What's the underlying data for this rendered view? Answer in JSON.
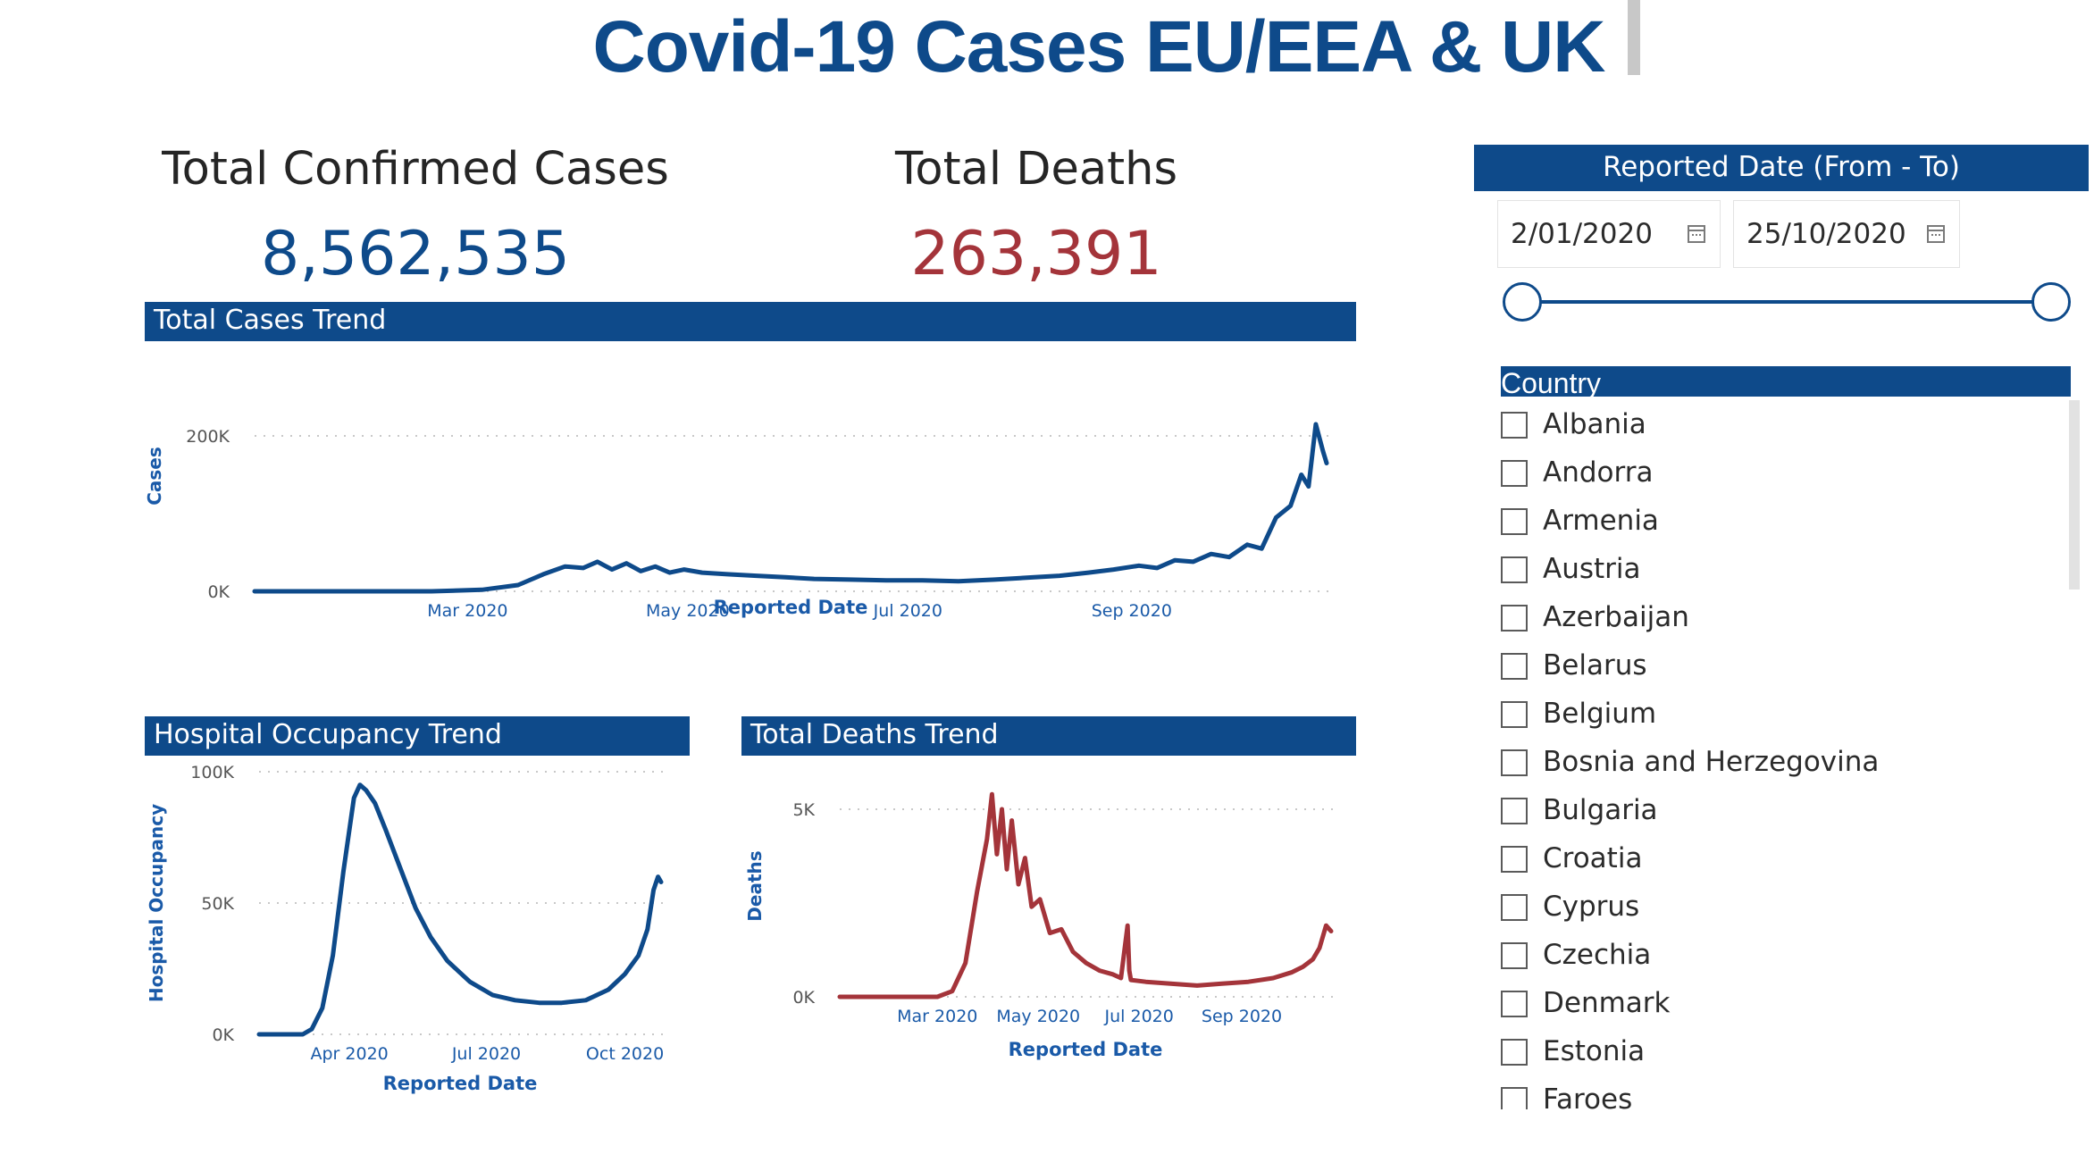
{
  "title": "Covid-19 Cases EU/EEA & UK",
  "kpis": {
    "cases_label": "Total Confirmed Cases",
    "cases_value": "8,562,535",
    "deaths_label": "Total Deaths",
    "deaths_value": "263,391"
  },
  "colors": {
    "primary": "#0e4a8a",
    "deaths": "#a4343a",
    "grid": "#c8c8c8"
  },
  "panels": {
    "cases_trend": "Total Cases Trend",
    "hospital_trend": "Hospital Occupancy Trend",
    "deaths_trend": "Total Deaths Trend"
  },
  "slicer": {
    "header": "Reported Date (From - To)",
    "from": "2/01/2020",
    "to": "25/10/2020",
    "from_icon": "calendar-icon",
    "to_icon": "calendar-icon"
  },
  "country": {
    "header": "Country",
    "items": [
      "Albania",
      "Andorra",
      "Armenia",
      "Austria",
      "Azerbaijan",
      "Belarus",
      "Belgium",
      "Bosnia and Herzegovina",
      "Bulgaria",
      "Croatia",
      "Cyprus",
      "Czechia",
      "Denmark",
      "Estonia",
      "Faroes"
    ]
  },
  "chart_data": [
    {
      "type": "line",
      "xlabel": "Reported Date",
      "ylabel": "Cases",
      "xticks": [
        "Mar 2020",
        "May 2020",
        "Jul 2020",
        "Sep 2020"
      ],
      "yticks": [
        "0K",
        "200K"
      ],
      "ylim": [
        0,
        200000
      ],
      "xlim": [
        "2020-01-02",
        "2020-10-25"
      ],
      "grid": true,
      "series": [
        {
          "x": [
            "2020-01-02",
            "2020-02-20",
            "2020-03-05",
            "2020-03-15",
            "2020-03-22",
            "2020-03-28",
            "2020-04-02",
            "2020-04-06",
            "2020-04-10",
            "2020-04-14",
            "2020-04-18",
            "2020-04-22",
            "2020-04-26",
            "2020-04-30",
            "2020-05-05",
            "2020-05-12",
            "2020-05-20",
            "2020-05-28",
            "2020-06-05",
            "2020-06-15",
            "2020-06-25",
            "2020-07-05",
            "2020-07-15",
            "2020-07-25",
            "2020-08-05",
            "2020-08-12",
            "2020-08-20",
            "2020-08-27",
            "2020-09-03",
            "2020-09-08",
            "2020-09-13",
            "2020-09-18",
            "2020-09-23",
            "2020-09-28",
            "2020-10-03",
            "2020-10-07",
            "2020-10-11",
            "2020-10-15",
            "2020-10-18",
            "2020-10-20",
            "2020-10-22",
            "2020-10-24",
            "2020-10-25"
          ],
          "values": [
            0,
            0,
            2000,
            8000,
            22000,
            32000,
            30000,
            38000,
            28000,
            36000,
            26000,
            32000,
            24000,
            28000,
            24000,
            22000,
            20000,
            18000,
            16000,
            15000,
            14000,
            14000,
            13000,
            15000,
            18000,
            20000,
            24000,
            28000,
            33000,
            30000,
            40000,
            38000,
            48000,
            44000,
            60000,
            55000,
            95000,
            110000,
            150000,
            135000,
            215000,
            180000,
            165000
          ]
        }
      ]
    },
    {
      "type": "line",
      "xlabel": "Reported Date",
      "ylabel": "Hospital Occupancy",
      "xticks": [
        "Apr 2020",
        "Jul 2020",
        "Oct 2020"
      ],
      "yticks": [
        "0K",
        "50K",
        "100K"
      ],
      "ylim": [
        0,
        100000
      ],
      "xlim": [
        "2020-02-01",
        "2020-10-25"
      ],
      "grid": true,
      "series": [
        {
          "x": [
            "2020-02-01",
            "2020-03-01",
            "2020-03-07",
            "2020-03-14",
            "2020-03-21",
            "2020-03-28",
            "2020-04-04",
            "2020-04-08",
            "2020-04-12",
            "2020-04-18",
            "2020-04-25",
            "2020-05-05",
            "2020-05-15",
            "2020-05-25",
            "2020-06-05",
            "2020-06-20",
            "2020-07-05",
            "2020-07-20",
            "2020-08-05",
            "2020-08-20",
            "2020-09-05",
            "2020-09-20",
            "2020-10-01",
            "2020-10-10",
            "2020-10-16",
            "2020-10-20",
            "2020-10-23",
            "2020-10-25"
          ],
          "values": [
            0,
            0,
            2000,
            10000,
            30000,
            62000,
            90000,
            95000,
            93000,
            88000,
            78000,
            63000,
            48000,
            37000,
            28000,
            20000,
            15000,
            13000,
            12000,
            12000,
            13000,
            17000,
            23000,
            30000,
            40000,
            55000,
            60000,
            58000
          ]
        }
      ]
    },
    {
      "type": "line",
      "xlabel": "Reported Date",
      "ylabel": "Deaths",
      "xticks": [
        "Mar 2020",
        "May 2020",
        "Jul 2020",
        "Sep 2020"
      ],
      "yticks": [
        "0K",
        "5K"
      ],
      "ylim": [
        0,
        5000
      ],
      "xlim": [
        "2020-01-02",
        "2020-10-25"
      ],
      "grid": true,
      "series": [
        {
          "x": [
            "2020-01-02",
            "2020-03-01",
            "2020-03-10",
            "2020-03-18",
            "2020-03-25",
            "2020-03-31",
            "2020-04-03",
            "2020-04-06",
            "2020-04-09",
            "2020-04-12",
            "2020-04-15",
            "2020-04-19",
            "2020-04-23",
            "2020-04-27",
            "2020-05-02",
            "2020-05-08",
            "2020-05-15",
            "2020-05-22",
            "2020-05-30",
            "2020-06-07",
            "2020-06-15",
            "2020-06-20",
            "2020-06-24",
            "2020-06-25",
            "2020-06-26",
            "2020-07-05",
            "2020-07-20",
            "2020-08-05",
            "2020-08-20",
            "2020-09-05",
            "2020-09-20",
            "2020-10-01",
            "2020-10-08",
            "2020-10-14",
            "2020-10-18",
            "2020-10-22",
            "2020-10-25"
          ],
          "values": [
            0,
            0,
            150,
            900,
            2800,
            4200,
            5400,
            3800,
            5000,
            3400,
            4700,
            3000,
            3700,
            2400,
            2600,
            1700,
            1800,
            1200,
            900,
            700,
            600,
            500,
            1900,
            700,
            450,
            400,
            350,
            300,
            350,
            400,
            500,
            650,
            800,
            1000,
            1300,
            1900,
            1750
          ]
        }
      ]
    }
  ]
}
